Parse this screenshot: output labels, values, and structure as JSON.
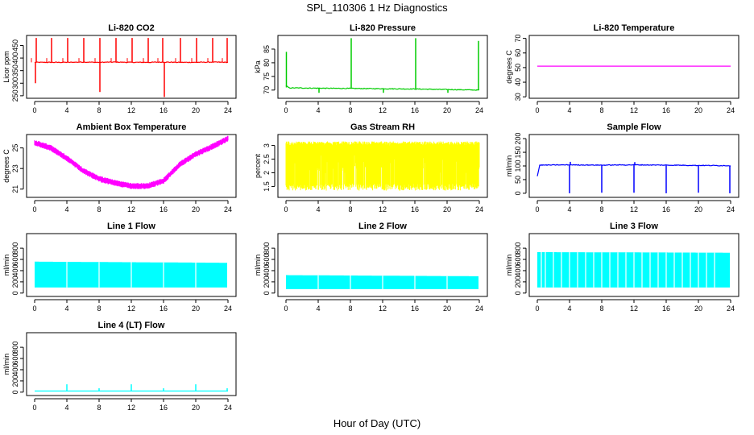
{
  "main_title": "SPL_110306  1 Hz Diagnostics",
  "x_title": "Hour of Day (UTC)",
  "chart_data": [
    {
      "id": "co2",
      "type": "line",
      "title": "Li-820 CO2",
      "ylabel": "Licor ppm",
      "color": "#ff0000",
      "xlim": [
        0,
        24
      ],
      "ylim": [
        240,
        490
      ],
      "yticks": [
        250,
        300,
        350,
        400,
        450
      ],
      "xticks": [
        0,
        4,
        8,
        12,
        16,
        20,
        24
      ],
      "series": [
        {
          "x": [
            0,
            2,
            4,
            6,
            8,
            10,
            12,
            14,
            16,
            18,
            20,
            22,
            24
          ],
          "y": [
            383,
            383,
            383,
            384,
            383,
            384,
            383,
            383,
            384,
            383,
            383,
            384,
            383
          ]
        }
      ],
      "spikes_up": [
        0.2,
        2.1,
        4.1,
        6.1,
        8.1,
        10.1,
        12.1,
        14.1,
        15.9,
        18.1,
        20.1,
        22.1,
        23.9
      ],
      "spike_up_value": 480,
      "spikes_down": [
        [
          0.1,
          300
        ],
        [
          8.1,
          265
        ],
        [
          16.1,
          245
        ]
      ]
    },
    {
      "id": "pressure",
      "type": "line",
      "title": "Li-820 Pressure",
      "ylabel": "kPa",
      "color": "#00cc00",
      "xlim": [
        0,
        24
      ],
      "ylim": [
        67,
        90
      ],
      "yticks": [
        70,
        75,
        80,
        85
      ],
      "xticks": [
        0,
        4,
        8,
        12,
        16,
        20,
        24
      ],
      "series": [
        {
          "x": [
            0,
            0.4,
            4,
            8,
            12,
            16,
            20,
            24
          ],
          "y": [
            71.0,
            70.8,
            70.7,
            70.6,
            70.5,
            70.4,
            70.2,
            70.0
          ]
        }
      ],
      "spikes_up": [
        [
          0.05,
          84
        ],
        [
          8.1,
          89
        ],
        [
          16.1,
          89
        ],
        [
          23.9,
          88
        ]
      ],
      "spikes_down": [
        [
          4.1,
          69
        ],
        [
          12.1,
          69
        ],
        [
          20.1,
          69
        ]
      ]
    },
    {
      "id": "temp",
      "type": "line",
      "title": "Li-820 Temperature",
      "ylabel": "degrees C",
      "color": "#ff00ff",
      "xlim": [
        0,
        24
      ],
      "ylim": [
        29,
        72
      ],
      "yticks": [
        30,
        40,
        50,
        60,
        70
      ],
      "xticks": [
        0,
        4,
        8,
        12,
        16,
        20,
        24
      ],
      "series": [
        {
          "x": [
            0,
            24
          ],
          "y": [
            51,
            51
          ]
        }
      ]
    },
    {
      "id": "ambient",
      "type": "band",
      "title": "Ambient Box Temperature",
      "ylabel": "degrees C",
      "color": "#ff00ff",
      "xlim": [
        0,
        24
      ],
      "ylim": [
        20.2,
        26.3
      ],
      "yticks": [
        21,
        23,
        25
      ],
      "xticks": [
        0,
        4,
        8,
        12,
        16,
        20,
        24
      ],
      "series": [
        {
          "x": [
            0,
            2,
            4,
            6,
            8,
            10,
            12,
            14,
            16,
            17,
            18,
            20,
            22,
            24
          ],
          "y": [
            25.5,
            25.0,
            24.0,
            22.8,
            22.0,
            21.6,
            21.3,
            21.3,
            21.8,
            22.6,
            23.4,
            24.4,
            25.1,
            25.9
          ]
        }
      ],
      "band_halfwidth": 0.25
    },
    {
      "id": "rh",
      "type": "band",
      "title": "Gas Stream RH",
      "ylabel": "percent",
      "color": "#ffff00",
      "xlim": [
        0,
        24
      ],
      "ylim": [
        1.1,
        3.4
      ],
      "yticks": [
        1.5,
        2.0,
        2.5,
        3.0
      ],
      "xticks": [
        0,
        4,
        8,
        12,
        16,
        20,
        24
      ],
      "series": [
        {
          "x": [
            0,
            24
          ],
          "y": [
            2.2,
            2.2
          ]
        }
      ],
      "band_low": 1.35,
      "band_high": 3.0
    },
    {
      "id": "sample",
      "type": "line",
      "title": "Sample Flow",
      "ylabel": "ml/min",
      "color": "#0000ff",
      "xlim": [
        0,
        24
      ],
      "ylim": [
        -15,
        215
      ],
      "yticks": [
        0,
        50,
        100,
        150,
        200
      ],
      "xticks": [
        0,
        4,
        8,
        12,
        16,
        20,
        24
      ],
      "series": [
        {
          "x": [
            0,
            0.3,
            4,
            8,
            12,
            16,
            20,
            24
          ],
          "y": [
            62,
            103,
            104,
            103,
            104,
            103,
            102,
            101
          ]
        }
      ],
      "spikes_down": [
        [
          4.0,
          0
        ],
        [
          8.0,
          2
        ],
        [
          12.0,
          2
        ],
        [
          16.0,
          0
        ],
        [
          20.0,
          2
        ],
        [
          23.9,
          0
        ]
      ],
      "spikes_up": [
        [
          4.1,
          115
        ],
        [
          12.1,
          114
        ]
      ]
    },
    {
      "id": "line1",
      "type": "flowband",
      "title": "Line 1 Flow",
      "ylabel": "ml/min",
      "color": "#00ffff",
      "xlim": [
        0,
        24
      ],
      "ylim": [
        -60,
        1060
      ],
      "yticks": [
        0,
        200,
        400,
        600,
        800
      ],
      "xticks": [
        0,
        4,
        8,
        12,
        16,
        20,
        24
      ],
      "series": [
        {
          "x": [
            0,
            24
          ],
          "y": [
            560,
            540
          ]
        }
      ],
      "band_low": 100,
      "gaps": [
        4,
        8,
        12,
        16,
        20
      ]
    },
    {
      "id": "line2",
      "type": "flowband",
      "title": "Line 2 Flow",
      "ylabel": "ml/min",
      "color": "#00ffff",
      "xlim": [
        0,
        24
      ],
      "ylim": [
        -60,
        1060
      ],
      "yticks": [
        0,
        200,
        400,
        600,
        800
      ],
      "xticks": [
        0,
        4,
        8,
        12,
        16,
        20,
        24
      ],
      "series": [
        {
          "x": [
            0,
            24
          ],
          "y": [
            320,
            300
          ]
        }
      ],
      "band_low": 70,
      "gaps": [
        4,
        8,
        12,
        16,
        20
      ]
    },
    {
      "id": "line3",
      "type": "flowband",
      "title": "Line 3 Flow",
      "ylabel": "ml/min",
      "color": "#00ffff",
      "xlim": [
        0,
        24
      ],
      "ylim": [
        -60,
        1060
      ],
      "yticks": [
        0,
        200,
        400,
        600,
        800
      ],
      "xticks": [
        0,
        4,
        8,
        12,
        16,
        20,
        24
      ],
      "series": [
        {
          "x": [
            0,
            24
          ],
          "y": [
            730,
            720
          ]
        }
      ],
      "band_low": 100,
      "gaps": [
        0.5,
        1,
        2,
        3,
        4,
        5,
        6,
        7,
        8,
        9,
        10,
        11,
        12,
        13,
        14,
        15,
        16,
        17,
        18,
        19,
        20,
        21,
        22
      ]
    },
    {
      "id": "line4",
      "type": "line",
      "title": "Line 4 (LT) Flow",
      "ylabel": "ml/min",
      "color": "#00ffff",
      "xlim": [
        0,
        24
      ],
      "ylim": [
        -60,
        1060
      ],
      "yticks": [
        0,
        200,
        400,
        600,
        800
      ],
      "xticks": [
        0,
        4,
        8,
        12,
        16,
        20,
        24
      ],
      "series": [
        {
          "x": [
            0,
            24
          ],
          "y": [
            20,
            20
          ]
        }
      ],
      "spikes_up": [
        [
          4.0,
          140
        ],
        [
          8.0,
          70
        ],
        [
          12.0,
          140
        ],
        [
          16.0,
          70
        ],
        [
          20.0,
          140
        ],
        [
          23.9,
          70
        ]
      ]
    }
  ]
}
